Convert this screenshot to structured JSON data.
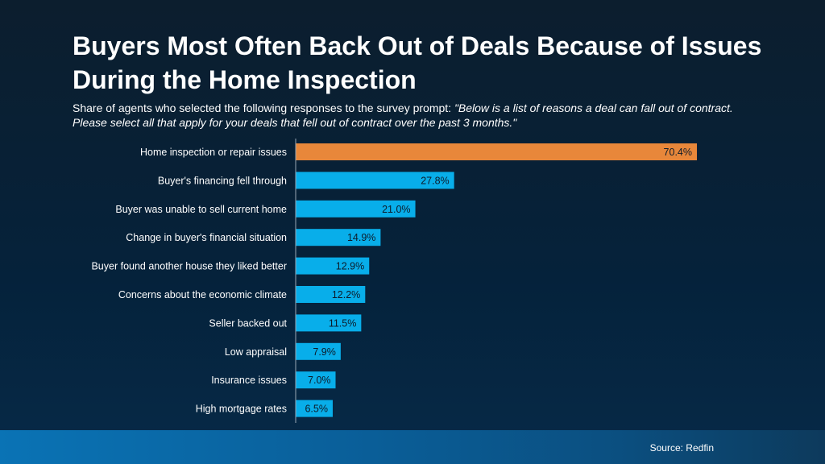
{
  "title": "Buyers Most Often Back Out of Deals Because of Issues During the Home Inspection",
  "subtitle_plain": "Share of agents who selected the following responses to the survey prompt: ",
  "subtitle_quote": "\"Below is a list of reasons a deal can fall out of contract. Please select all that apply for your deals that fell out of contract over the past 3 months.\"",
  "source": "Source: Redfin",
  "chart_data": {
    "type": "bar",
    "orientation": "horizontal",
    "categories": [
      "Home inspection or repair issues",
      "Buyer's financing fell through",
      "Buyer was unable to sell current home",
      "Change in buyer's financial situation",
      "Buyer found another house they liked better",
      "Concerns about the economic climate",
      "Seller backed out",
      "Low appraisal",
      "Insurance issues",
      "High mortgage rates"
    ],
    "values": [
      70.4,
      27.8,
      21.0,
      14.9,
      12.9,
      12.2,
      11.5,
      7.9,
      7.0,
      6.5
    ],
    "data_labels": [
      "70.4%",
      "27.8%",
      "21.0%",
      "14.9%",
      "12.9%",
      "12.2%",
      "11.5%",
      "7.9%",
      "7.0%",
      "6.5%"
    ],
    "unit": "%",
    "xlim": [
      0,
      70.4
    ],
    "grid": false,
    "colors": {
      "highlight": "#e8873a",
      "default": "#08aeea"
    }
  }
}
